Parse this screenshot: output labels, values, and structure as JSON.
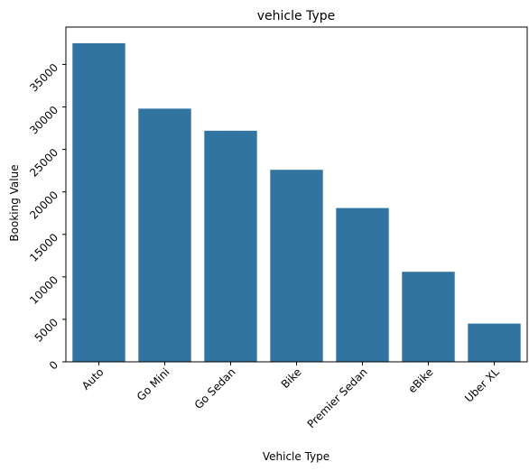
{
  "chart_data": {
    "type": "bar",
    "title": "vehicle Type",
    "xlabel": "Vehicle Type",
    "ylabel": "Booking Value",
    "categories": [
      "Auto",
      "Go Mini",
      "Go Sedan",
      "Bike",
      "Premier Sedan",
      "eBike",
      "Uber XL"
    ],
    "values": [
      37500,
      29800,
      27200,
      22600,
      18100,
      10600,
      4500
    ],
    "yticks": [
      0,
      5000,
      10000,
      15000,
      20000,
      25000,
      30000,
      35000
    ],
    "ylim": [
      0,
      39400
    ],
    "bar_color": "#3274a1",
    "grid": false,
    "legend": "none"
  }
}
